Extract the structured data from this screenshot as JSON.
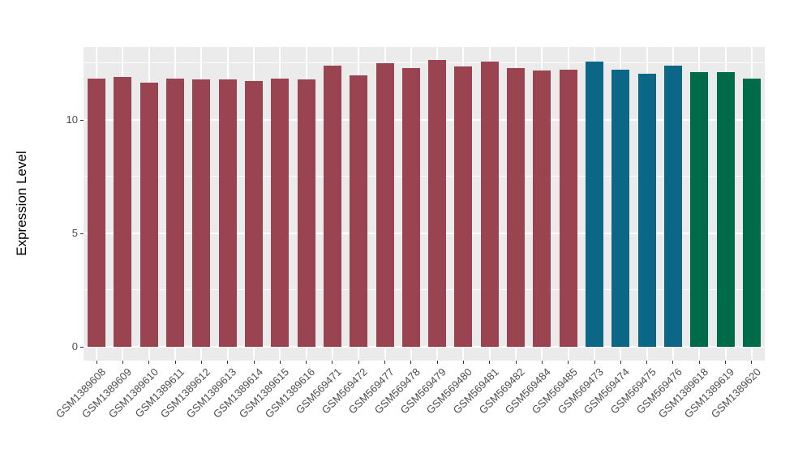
{
  "chart_data": {
    "type": "bar",
    "title": "",
    "ylabel": "Expression Level",
    "xlabel": "",
    "yticks": [
      0,
      5,
      10
    ],
    "ylim": [
      0,
      13.2
    ],
    "ygrid_major": [
      0,
      5,
      10
    ],
    "ygrid_minor": [
      2.5,
      7.5,
      12.5
    ],
    "grid": "on",
    "legend": "none",
    "panel_bg": "#EBEBEB",
    "gridline_color": "#FFFFFF",
    "axis_text_color": "#4d4d4d",
    "categories": [
      "GSM1389608",
      "GSM1389609",
      "GSM1389610",
      "GSM1389611",
      "GSM1389612",
      "GSM1389613",
      "GSM1389614",
      "GSM1389615",
      "GSM1389616",
      "GSM569471",
      "GSM569472",
      "GSM569477",
      "GSM569478",
      "GSM569479",
      "GSM569480",
      "GSM569481",
      "GSM569482",
      "GSM569484",
      "GSM569485",
      "GSM569473",
      "GSM569474",
      "GSM569475",
      "GSM569476",
      "GSM1389618",
      "GSM1389619",
      "GSM1389620"
    ],
    "values": [
      11.8,
      11.88,
      11.62,
      11.8,
      11.78,
      11.78,
      11.7,
      11.82,
      11.78,
      12.4,
      11.95,
      12.48,
      12.27,
      12.63,
      12.36,
      12.55,
      12.27,
      12.18,
      12.2,
      12.55,
      12.2,
      12.04,
      12.39,
      12.08,
      12.08,
      11.82
    ],
    "bar_colors": [
      "#9A4452",
      "#9A4452",
      "#9A4452",
      "#9A4452",
      "#9A4452",
      "#9A4452",
      "#9A4452",
      "#9A4452",
      "#9A4452",
      "#9A4452",
      "#9A4452",
      "#9A4452",
      "#9A4452",
      "#9A4452",
      "#9A4452",
      "#9A4452",
      "#9A4452",
      "#9A4452",
      "#9A4452",
      "#0C6786",
      "#0C6786",
      "#0C6786",
      "#0C6786",
      "#006B48",
      "#006B48",
      "#006B48"
    ],
    "color_groups": [
      {
        "color": "#9A4452",
        "count": 19
      },
      {
        "color": "#0C6786",
        "count": 4
      },
      {
        "color": "#006B48",
        "count": 3
      }
    ]
  }
}
